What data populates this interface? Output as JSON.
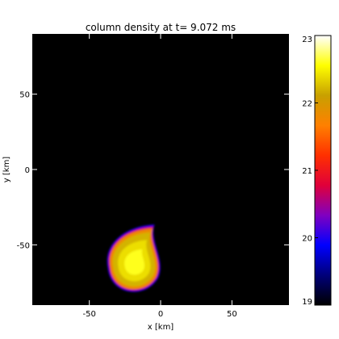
{
  "chart_data": {
    "type": "heatmap",
    "title": "column density at t=  9.072 ms",
    "xlabel": "x [km]",
    "ylabel": "y [km]",
    "xlim": [
      -90,
      90
    ],
    "ylim": [
      -90,
      90
    ],
    "xticks": [
      -50,
      0,
      50
    ],
    "yticks": [
      -50,
      0,
      50
    ],
    "background_value": 19,
    "colorbar": {
      "min": 19,
      "max": 23,
      "ticks": [
        19,
        20,
        21,
        22,
        23
      ],
      "colors": [
        "#000000",
        "#00007a",
        "#0000ff",
        "#8000c0",
        "#e0003a",
        "#ff3000",
        "#ff8000",
        "#c8a000",
        "#ffff00",
        "#ffffff"
      ]
    },
    "features": [
      {
        "name": "blob",
        "shape": "teardrop",
        "center": [
          -18,
          -63
        ],
        "semi_axes": [
          18,
          19
        ],
        "tail_tip": [
          -5,
          -38
        ],
        "rotation_deg": 30,
        "levels": [
          {
            "value": 20.0,
            "scale": 1.06
          },
          {
            "value": 20.8,
            "scale": 1.0
          },
          {
            "value": 21.8,
            "scale": 0.95
          },
          {
            "value": 22.2,
            "scale": 0.85
          },
          {
            "value": 22.4,
            "scale": 0.65
          },
          {
            "value": 22.6,
            "scale": 0.4
          }
        ]
      }
    ]
  }
}
